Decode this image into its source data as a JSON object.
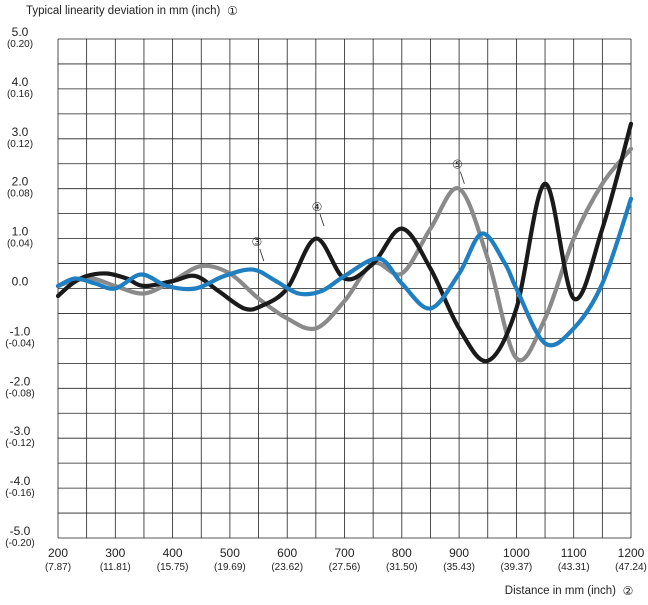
{
  "chart_data": {
    "type": "line",
    "ylabel": "Typical linearity deviation in mm (inch)",
    "ylabel_marker": "1",
    "xlabel": "Distance in mm (inch)",
    "xlabel_marker": "2",
    "xlim": [
      200,
      1200
    ],
    "ylim": [
      -5.0,
      5.0
    ],
    "grid": true,
    "x_ticks": [
      {
        "value": 200,
        "label": "200",
        "sub": "(7.87)"
      },
      {
        "value": 300,
        "label": "300",
        "sub": "(11.81)"
      },
      {
        "value": 400,
        "label": "400",
        "sub": "(15.75)"
      },
      {
        "value": 500,
        "label": "500",
        "sub": "(19.69)"
      },
      {
        "value": 600,
        "label": "600",
        "sub": "(23.62)"
      },
      {
        "value": 700,
        "label": "700",
        "sub": "(27.56)"
      },
      {
        "value": 800,
        "label": "800",
        "sub": "(31.50)"
      },
      {
        "value": 900,
        "label": "900",
        "sub": "(35.43)"
      },
      {
        "value": 1000,
        "label": "1000",
        "sub": "(39.37)"
      },
      {
        "value": 1100,
        "label": "1100",
        "sub": "(43.31)"
      },
      {
        "value": 1200,
        "label": "1200",
        "sub": "(47.24)"
      }
    ],
    "y_ticks": [
      {
        "value": 5,
        "label": "5.0",
        "sub": "(0.20)"
      },
      {
        "value": 4,
        "label": "4.0",
        "sub": "(0.16)"
      },
      {
        "value": 3,
        "label": "3.0",
        "sub": "(0.12)"
      },
      {
        "value": 2,
        "label": "2.0",
        "sub": "(0.08)"
      },
      {
        "value": 1,
        "label": "1.0",
        "sub": "(0.04)"
      },
      {
        "value": 0,
        "label": "0.0",
        "sub": ""
      },
      {
        "value": -1,
        "label": "-1.0",
        "sub": "(-0.04)"
      },
      {
        "value": -2,
        "label": "-2.0",
        "sub": "(-0.08)"
      },
      {
        "value": -3,
        "label": "-3.0",
        "sub": "(-0.12)"
      },
      {
        "value": -4,
        "label": "-4.0",
        "sub": "(-0.16)"
      },
      {
        "value": -5,
        "label": "-5.0",
        "sub": "(-0.20)"
      }
    ],
    "series": [
      {
        "name": "",
        "marker": "5",
        "color": "#8a8a8a",
        "marker_at": [
          897,
          2.4
        ],
        "x": [
          200,
          225,
          260,
          300,
          350,
          400,
          450,
          500,
          550,
          600,
          650,
          700,
          750,
          800,
          850,
          900,
          950,
          1000,
          1050,
          1100,
          1150,
          1200
        ],
        "y": [
          0.05,
          0.15,
          0.2,
          0.05,
          -0.1,
          0.15,
          0.45,
          0.3,
          -0.2,
          -0.6,
          -0.8,
          -0.25,
          0.5,
          0.3,
          1.2,
          2.0,
          0.6,
          -1.4,
          -0.6,
          1.0,
          2.1,
          2.8
        ]
      },
      {
        "name": "",
        "marker": "4",
        "color": "#1a1a1a",
        "marker_at": [
          652,
          1.55
        ],
        "x": [
          200,
          225,
          250,
          285,
          320,
          350,
          400,
          440,
          480,
          525,
          555,
          600,
          650,
          700,
          750,
          800,
          850,
          900,
          950,
          1000,
          1050,
          1100,
          1150,
          1200
        ],
        "y": [
          -0.15,
          0.1,
          0.25,
          0.3,
          0.2,
          0.05,
          0.15,
          0.25,
          -0.05,
          -0.4,
          -0.35,
          0.0,
          1.0,
          0.2,
          0.5,
          1.2,
          0.4,
          -0.8,
          -1.45,
          -0.4,
          2.1,
          -0.2,
          1.2,
          3.3
        ]
      },
      {
        "name": "",
        "marker": "3",
        "color": "#1f7fc0",
        "marker_at": [
          547,
          0.85
        ],
        "x": [
          200,
          230,
          265,
          300,
          345,
          390,
          440,
          490,
          540,
          580,
          620,
          660,
          700,
          760,
          800,
          850,
          900,
          940,
          980,
          1000,
          1050,
          1100,
          1150,
          1200
        ],
        "y": [
          0.05,
          0.2,
          0.1,
          0.0,
          0.28,
          0.05,
          0.0,
          0.25,
          0.38,
          0.15,
          -0.1,
          -0.05,
          0.25,
          0.6,
          0.1,
          -0.4,
          0.3,
          1.1,
          0.5,
          0.0,
          -1.1,
          -0.8,
          0.1,
          1.8
        ]
      }
    ]
  },
  "circled_digits": {
    "1": "①",
    "2": "②",
    "3": "③",
    "4": "④",
    "5": "⑤"
  }
}
